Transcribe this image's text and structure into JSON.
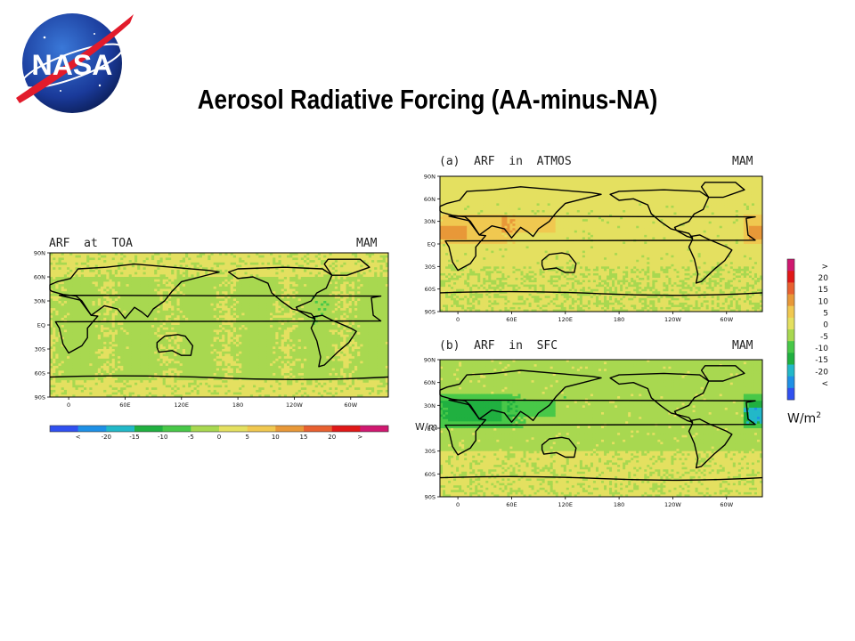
{
  "title": "Aerosol Radiative Forcing (AA-minus-NA)",
  "logo": {
    "text": "NASA"
  },
  "panels": [
    {
      "id": "toa",
      "title": "ARF  at  TOA",
      "season": "MAM"
    },
    {
      "id": "atmos",
      "title": "(a)  ARF  in  ATMOS",
      "season": "MAM"
    },
    {
      "id": "sfc",
      "title": "(b)  ARF  in  SFC",
      "season": "MAM"
    }
  ],
  "axes": {
    "lon_ticks": [
      "0",
      "60E",
      "120E",
      "180",
      "120W",
      "60W"
    ],
    "lat_ticks": [
      "90N",
      "60N",
      "30N",
      "EQ",
      "30S",
      "60S",
      "90S"
    ]
  },
  "colorbar": {
    "labels": [
      ">",
      "20",
      "15",
      "10",
      "5",
      "0",
      "-5",
      "-10",
      "-15",
      "-20",
      "<"
    ],
    "h_labels": [
      "<",
      "-20",
      "-15",
      "-10",
      "-5",
      "0",
      "5",
      "10",
      "15",
      "20",
      ">"
    ],
    "unit": "W/m",
    "unit_sup": "2",
    "overlap_unit": "W/m"
  },
  "colors": {
    "levels": [
      "#3050f0",
      "#1e90e6",
      "#22b8c8",
      "#20b040",
      "#48c848",
      "#a8d850",
      "#e4e060",
      "#f0c850",
      "#e89838",
      "#e86030",
      "#e01818",
      "#d01870"
    ]
  }
}
